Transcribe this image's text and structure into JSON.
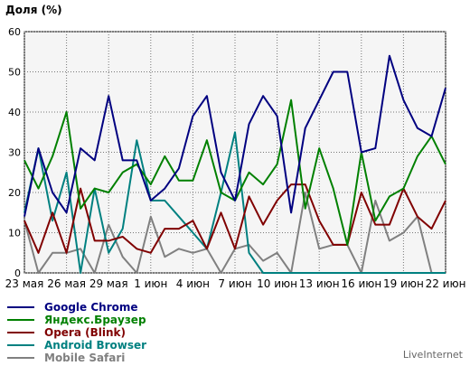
{
  "chart_data": {
    "type": "line",
    "ylabel": "Доля (%)",
    "ylim": [
      0,
      60
    ],
    "yticks": [
      0,
      10,
      20,
      30,
      40,
      50,
      60
    ],
    "xtick_labels": [
      "23 мая",
      "26 мая",
      "29 мая",
      "1 июн",
      "4 июн",
      "7 июн",
      "10 июн",
      "13 июн",
      "16 июн",
      "19 июн",
      "22 июн"
    ],
    "grid": true,
    "legend_position": "bottom-left",
    "series": [
      {
        "name": "Google Chrome",
        "color": "#000080",
        "values": [
          14,
          31,
          20,
          15,
          31,
          28,
          44,
          28,
          28,
          18,
          21,
          26,
          39,
          44,
          25,
          18,
          37,
          44,
          39,
          15,
          36,
          43,
          50,
          50,
          30,
          31,
          54,
          43,
          36,
          34,
          46
        ]
      },
      {
        "name": "Яндекс.Браузер",
        "color": "#008000",
        "values": [
          28,
          21,
          29,
          40,
          16,
          21,
          20,
          25,
          27,
          22,
          29,
          23,
          23,
          33,
          20,
          18,
          25,
          22,
          27,
          43,
          16,
          31,
          21,
          7,
          30,
          13,
          19,
          21,
          29,
          34,
          27
        ]
      },
      {
        "name": "Opera (Blink)",
        "color": "#800000",
        "values": [
          13,
          5,
          15,
          5,
          21,
          8,
          8,
          9,
          6,
          5,
          11,
          11,
          13,
          6,
          15,
          6,
          19,
          12,
          18,
          22,
          22,
          13,
          7,
          7,
          20,
          12,
          12,
          21,
          14,
          11,
          18
        ]
      },
      {
        "name": "Android Browser",
        "color": "#008080",
        "values": [
          15,
          31,
          13,
          25,
          0,
          21,
          5,
          11,
          33,
          18,
          18,
          14,
          10,
          6,
          20,
          35,
          5,
          0,
          0,
          0,
          0,
          0,
          0,
          0,
          0,
          0,
          0,
          0,
          0,
          0,
          0
        ]
      },
      {
        "name": "Mobile Safari",
        "color": "#808080",
        "values": [
          13,
          0,
          5,
          5,
          6,
          0,
          12,
          4,
          0,
          14,
          4,
          6,
          5,
          6,
          0,
          6,
          7,
          3,
          5,
          0,
          20,
          6,
          7,
          7,
          0,
          18,
          8,
          10,
          14,
          0,
          0
        ]
      }
    ]
  },
  "credit": "LiveInternet"
}
